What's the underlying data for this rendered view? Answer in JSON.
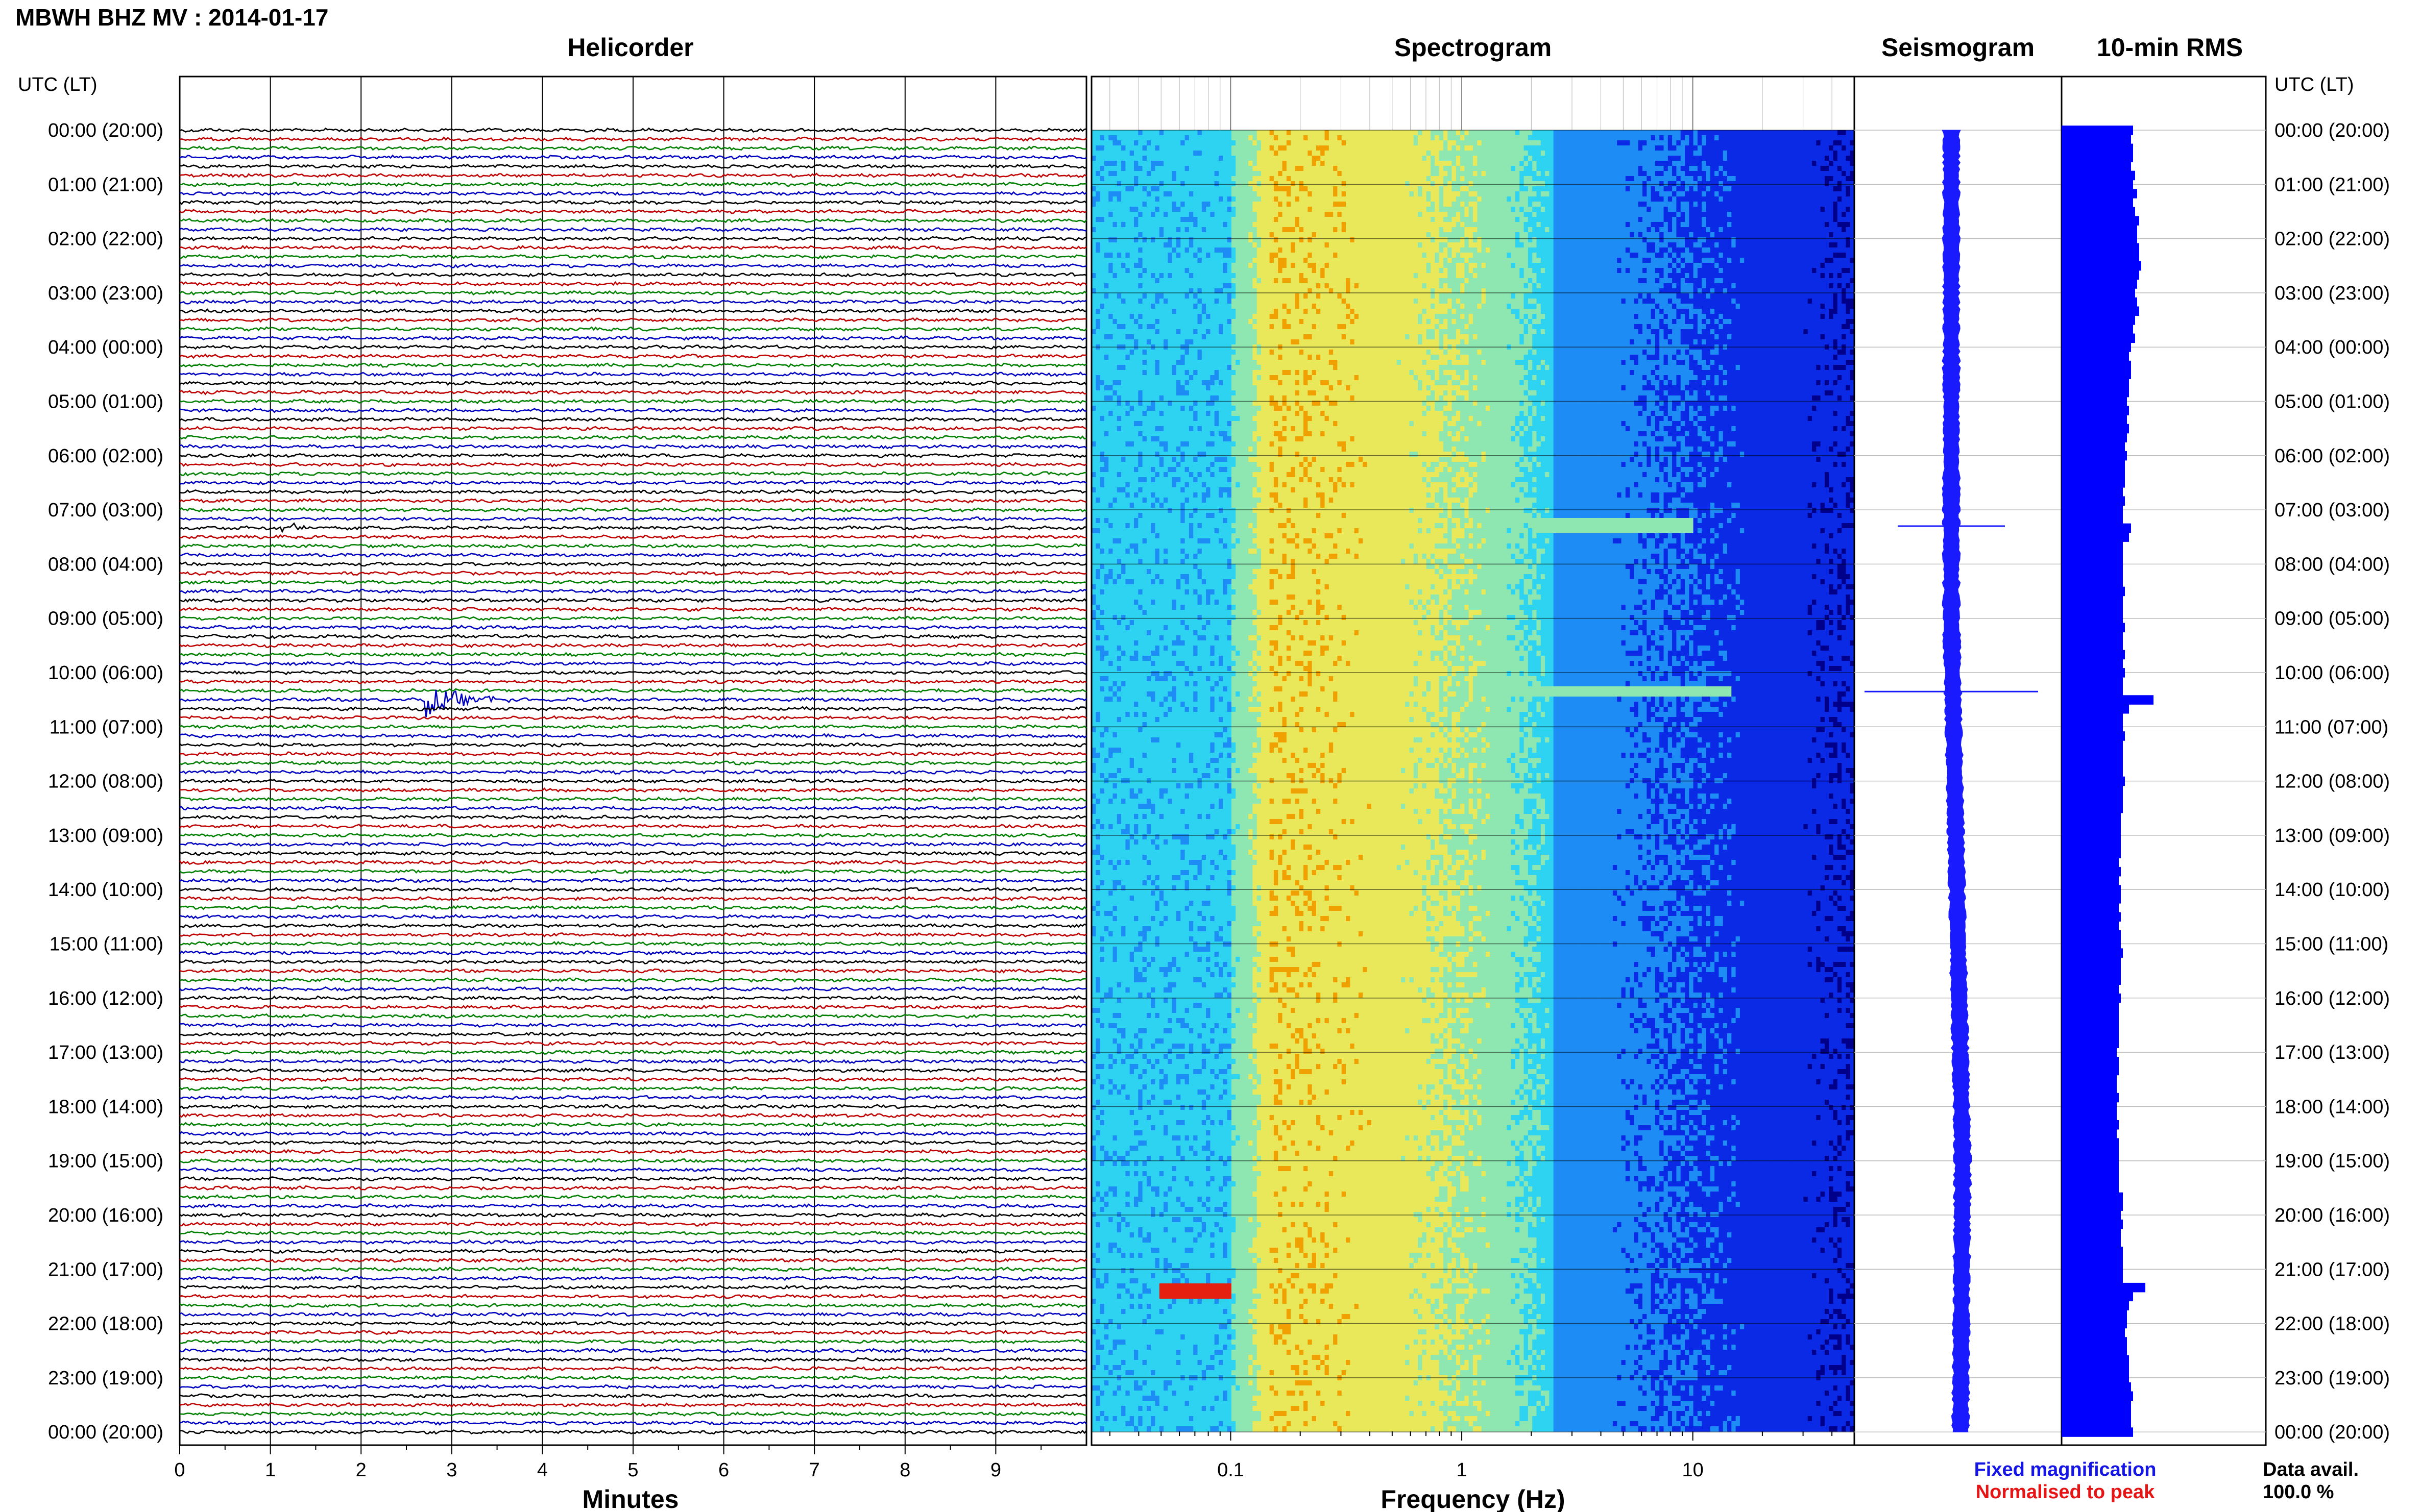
{
  "header": {
    "title": "MBWH BHZ MV : 2014-01-17",
    "time_axis_label_left": "UTC (LT)",
    "time_axis_label_right": "UTC (LT)"
  },
  "panels": {
    "helicorder": "Helicorder",
    "spectrogram": "Spectrogram",
    "seismogram": "Seismogram",
    "rms": "10-min RMS"
  },
  "axes": {
    "minutes_label": "Minutes",
    "frequency_label": "Frequency (Hz)"
  },
  "legend": {
    "fixed": "Fixed magnification",
    "fixed_color": "#1515e6",
    "normalised": "Normalised to peak",
    "normalised_color": "#e61515",
    "data_avail_label": "Data avail.",
    "data_avail_value": "100.0 %"
  },
  "chart_data": [
    {
      "type": "line",
      "name": "helicorder",
      "xlabel": "Minutes",
      "x_ticks": [
        "0",
        "1",
        "2",
        "3",
        "4",
        "5",
        "6",
        "7",
        "8",
        "9"
      ],
      "xlim": [
        0,
        10
      ],
      "time_labels": [
        "00:00 (20:00)",
        "01:00 (21:00)",
        "02:00 (22:00)",
        "03:00 (23:00)",
        "04:00 (00:00)",
        "05:00 (01:00)",
        "06:00 (02:00)",
        "07:00 (03:00)",
        "08:00 (04:00)",
        "09:00 (05:00)",
        "10:00 (06:00)",
        "11:00 (07:00)",
        "12:00 (08:00)",
        "13:00 (09:00)",
        "14:00 (10:00)",
        "15:00 (11:00)",
        "16:00 (12:00)",
        "17:00 (13:00)",
        "18:00 (14:00)",
        "19:00 (15:00)",
        "20:00 (16:00)",
        "21:00 (17:00)",
        "22:00 (18:00)",
        "23:00 (19:00)",
        "00:00 (20:00)"
      ],
      "lines_per_hour": 6,
      "line_colors": [
        "#000000",
        "#c00000",
        "#008000",
        "#0000c0"
      ],
      "events": [
        {
          "line": 44,
          "minute_start": 1.1,
          "minute_end": 1.6,
          "amplitude": 0.6
        },
        {
          "line": 63,
          "minute_start": 2.7,
          "minute_end": 3.7,
          "amplitude": 1.3
        }
      ]
    },
    {
      "type": "heatmap",
      "name": "spectrogram",
      "xlabel": "Frequency (Hz)",
      "x_scale": "log",
      "xlim": [
        0.025,
        50
      ],
      "x_ticks": [
        "0.1",
        "1",
        "10"
      ],
      "colormap": [
        "#00008b",
        "#0a2ae6",
        "#1d8cf5",
        "#2dd3f0",
        "#8ee6b0",
        "#e8e85a",
        "#f0a000",
        "#e62010"
      ],
      "highlights": [
        {
          "hour": 21.4,
          "f_low": 0.05,
          "f_high": 0.1,
          "level": 7
        },
        {
          "hour": 7.3,
          "f_low": 2,
          "f_high": 10,
          "level": 4
        },
        {
          "hour": 10.35,
          "f_low": 1,
          "f_high": 15,
          "level": 4
        }
      ]
    },
    {
      "type": "line",
      "name": "seismogram",
      "events": [
        {
          "hour": 7.3,
          "amplitude": 0.5
        },
        {
          "hour": 10.35,
          "amplitude": 1.0
        }
      ]
    },
    {
      "type": "bar",
      "name": "10-min RMS",
      "bar_color": "#0000ff",
      "values": [
        0.35,
        0.34,
        0.35,
        0.35,
        0.34,
        0.36,
        0.35,
        0.37,
        0.35,
        0.36,
        0.38,
        0.37,
        0.37,
        0.38,
        0.38,
        0.39,
        0.38,
        0.37,
        0.36,
        0.37,
        0.38,
        0.36,
        0.35,
        0.36,
        0.34,
        0.33,
        0.34,
        0.34,
        0.33,
        0.33,
        0.32,
        0.33,
        0.32,
        0.33,
        0.32,
        0.31,
        0.32,
        0.31,
        0.31,
        0.31,
        0.3,
        0.31,
        0.3,
        0.3,
        0.34,
        0.33,
        0.3,
        0.3,
        0.3,
        0.3,
        0.3,
        0.31,
        0.3,
        0.3,
        0.3,
        0.31,
        0.3,
        0.3,
        0.31,
        0.3,
        0.31,
        0.3,
        0.3,
        0.45,
        0.33,
        0.3,
        0.3,
        0.31,
        0.3,
        0.3,
        0.3,
        0.3,
        0.31,
        0.3,
        0.3,
        0.3,
        0.29,
        0.29,
        0.29,
        0.29,
        0.29,
        0.28,
        0.29,
        0.28,
        0.29,
        0.29,
        0.28,
        0.29,
        0.28,
        0.29,
        0.29,
        0.3,
        0.29,
        0.29,
        0.29,
        0.28,
        0.29,
        0.28,
        0.28,
        0.28,
        0.28,
        0.28,
        0.27,
        0.28,
        0.28,
        0.27,
        0.27,
        0.28,
        0.27,
        0.27,
        0.28,
        0.27,
        0.28,
        0.28,
        0.28,
        0.28,
        0.28,
        0.28,
        0.3,
        0.3,
        0.29,
        0.3,
        0.29,
        0.29,
        0.3,
        0.3,
        0.3,
        0.3,
        0.41,
        0.35,
        0.33,
        0.32,
        0.32,
        0.31,
        0.32,
        0.32,
        0.33,
        0.33,
        0.33,
        0.34,
        0.35,
        0.34,
        0.34,
        0.34,
        0.35
      ]
    }
  ]
}
